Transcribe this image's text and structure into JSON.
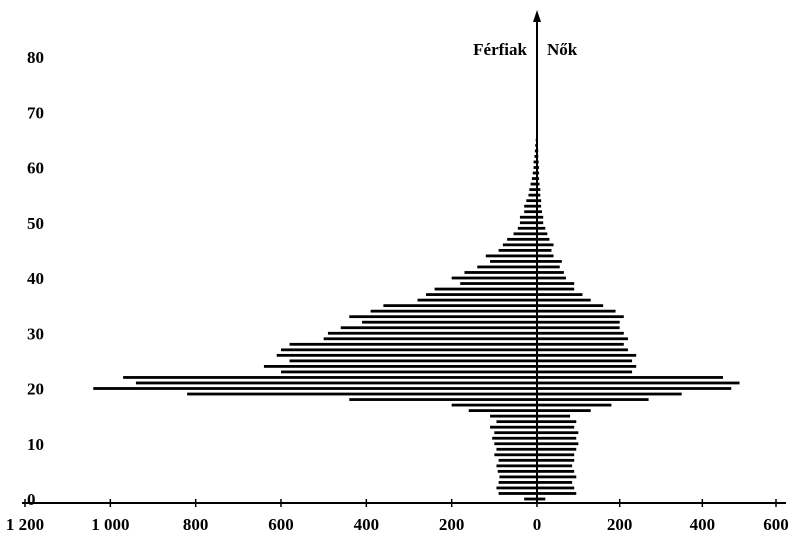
{
  "chart_data": {
    "type": "bar",
    "orientation": "horizontal",
    "subtype": "population-pyramid",
    "title": "",
    "xlabel": "",
    "ylabel": "",
    "series": [
      {
        "name": "Férfiak",
        "side": "left"
      },
      {
        "name": "Nők",
        "side": "right"
      }
    ],
    "x_ticks_left": [
      "1 200",
      "1 000",
      "800",
      "600",
      "400",
      "200",
      "0"
    ],
    "x_ticks_right": [
      "200",
      "400",
      "600"
    ],
    "y_ticks": [
      "0",
      "10",
      "20",
      "30",
      "40",
      "50",
      "60",
      "70",
      "80"
    ],
    "xlim_left": [
      0,
      1200
    ],
    "xlim_right": [
      0,
      600
    ],
    "ylim": [
      0,
      85
    ],
    "grid": false,
    "legend_position": "top-center",
    "ages": [
      0,
      1,
      2,
      3,
      4,
      5,
      6,
      7,
      8,
      9,
      10,
      11,
      12,
      13,
      14,
      15,
      16,
      17,
      18,
      19,
      20,
      21,
      22,
      23,
      24,
      25,
      26,
      27,
      28,
      29,
      30,
      31,
      32,
      33,
      34,
      35,
      36,
      37,
      38,
      39,
      40,
      41,
      42,
      43,
      44,
      45,
      46,
      47,
      48,
      49,
      50,
      51,
      52,
      53,
      54,
      55,
      56,
      57,
      58,
      59,
      60,
      61,
      62,
      63,
      64,
      65
    ],
    "male": [
      30,
      90,
      95,
      90,
      88,
      92,
      95,
      90,
      100,
      95,
      100,
      105,
      100,
      110,
      95,
      110,
      160,
      200,
      440,
      820,
      1040,
      940,
      970,
      600,
      640,
      580,
      610,
      600,
      580,
      500,
      490,
      460,
      410,
      440,
      390,
      360,
      280,
      260,
      240,
      180,
      200,
      170,
      140,
      110,
      120,
      90,
      80,
      70,
      55,
      45,
      40,
      40,
      30,
      30,
      25,
      20,
      18,
      15,
      12,
      10,
      8,
      8,
      6,
      5,
      4,
      3
    ],
    "female": [
      20,
      95,
      90,
      85,
      95,
      90,
      85,
      90,
      90,
      95,
      100,
      95,
      100,
      90,
      95,
      80,
      130,
      180,
      270,
      350,
      470,
      490,
      450,
      230,
      240,
      230,
      240,
      220,
      210,
      220,
      210,
      200,
      200,
      210,
      190,
      160,
      130,
      110,
      90,
      90,
      70,
      65,
      55,
      60,
      40,
      35,
      40,
      30,
      25,
      20,
      15,
      15,
      12,
      10,
      10,
      8,
      8,
      6,
      5,
      5,
      5,
      4,
      3,
      3,
      2,
      2
    ]
  }
}
